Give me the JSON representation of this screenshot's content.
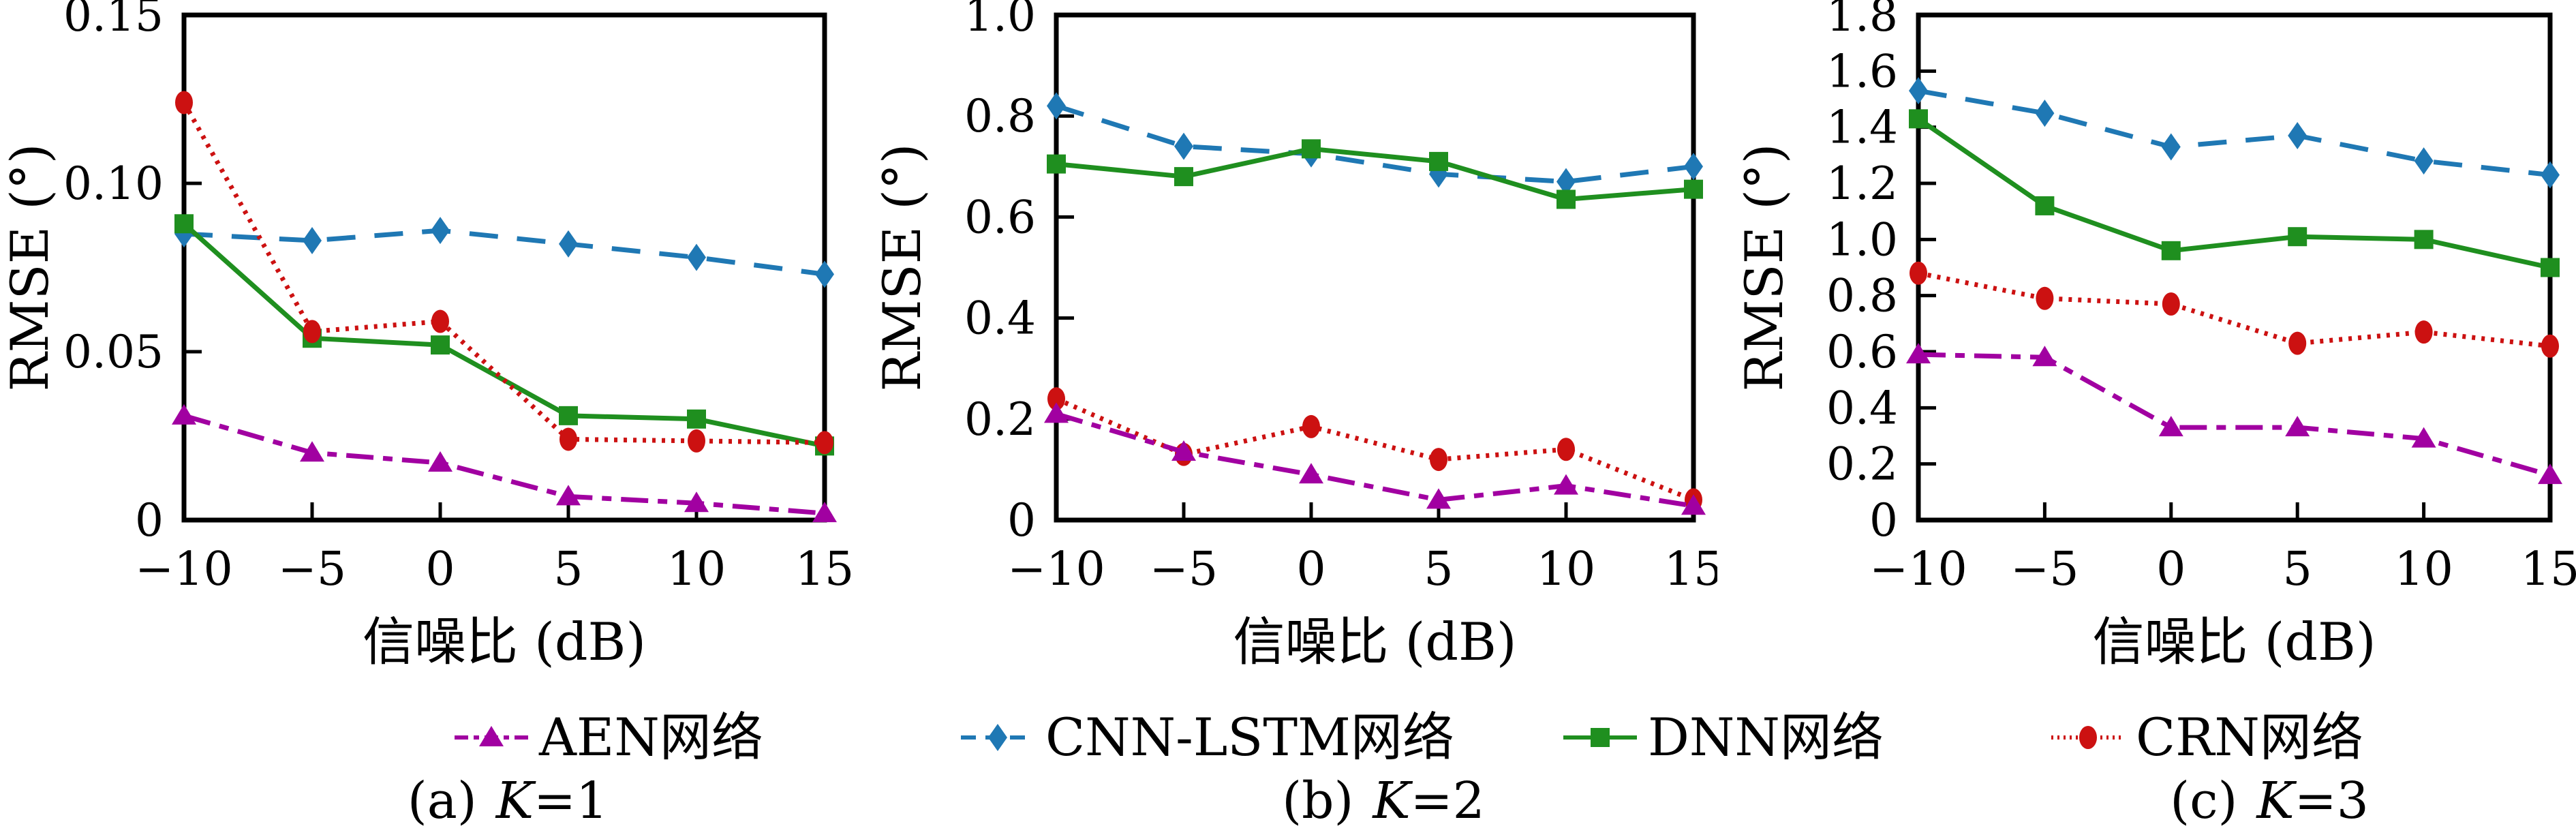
{
  "figure": {
    "background": "#ffffff",
    "axis_color": "#000000",
    "xlabel": "信噪比 (dB)",
    "ylabel": "RMSE (°)"
  },
  "series_styles": {
    "AEN": {
      "color": "#A100A1",
      "marker": "triangle",
      "line": "dashdot"
    },
    "CNN-LSTM": {
      "color": "#1F78B4",
      "marker": "diamond",
      "line": "dashed"
    },
    "DNN": {
      "color": "#1F8F1F",
      "marker": "square",
      "line": "solid"
    },
    "CRN": {
      "color": "#CC1111",
      "marker": "ellipse",
      "line": "dotted"
    }
  },
  "legend": {
    "items": [
      {
        "key": "AEN",
        "label": "AEN网络"
      },
      {
        "key": "CNN-LSTM",
        "label": "CNN-LSTM网络"
      },
      {
        "key": "DNN",
        "label": "DNN网络"
      },
      {
        "key": "CRN",
        "label": "CRN网络"
      }
    ]
  },
  "chart_data": [
    {
      "type": "line",
      "caption": {
        "index": "(a)",
        "k": "K",
        "eq": "=1"
      },
      "xlabel": "信噪比 (dB)",
      "ylabel": "RMSE (°)",
      "x": [
        -10,
        -5,
        0,
        5,
        10,
        15
      ],
      "xlim": [
        -10,
        15
      ],
      "ylim": [
        0,
        0.15
      ],
      "xticks": [
        -10,
        -5,
        0,
        5,
        10,
        15
      ],
      "xtick_labels": [
        "−10",
        "−5",
        "0",
        "5",
        "10",
        "15"
      ],
      "yticks": [
        0,
        0.05,
        0.1,
        0.15
      ],
      "ytick_labels": [
        "0",
        "0.05",
        "0.10",
        "0.15"
      ],
      "series": [
        {
          "key": "AEN",
          "name": "AEN网络",
          "values": [
            0.031,
            0.02,
            0.017,
            0.007,
            0.005,
            0.002
          ]
        },
        {
          "key": "CNN-LSTM",
          "name": "CNN-LSTM网络",
          "values": [
            0.085,
            0.083,
            0.086,
            0.082,
            0.078,
            0.073
          ]
        },
        {
          "key": "DNN",
          "name": "DNN网络",
          "values": [
            0.088,
            0.054,
            0.052,
            0.031,
            0.03,
            0.022
          ]
        },
        {
          "key": "CRN",
          "name": "CRN网络",
          "values": [
            0.124,
            0.056,
            0.059,
            0.024,
            0.0235,
            0.023
          ]
        }
      ]
    },
    {
      "type": "line",
      "caption": {
        "index": "(b)",
        "k": "K",
        "eq": "=2"
      },
      "xlabel": "信噪比 (dB)",
      "ylabel": "RMSE (°)",
      "x": [
        -10,
        -5,
        0,
        5,
        10,
        15
      ],
      "xlim": [
        -10,
        15
      ],
      "ylim": [
        0,
        1.0
      ],
      "xticks": [
        -10,
        -5,
        0,
        5,
        10,
        15
      ],
      "xtick_labels": [
        "−10",
        "−5",
        "0",
        "5",
        "10",
        "15"
      ],
      "yticks": [
        0,
        0.2,
        0.4,
        0.6,
        0.8,
        1.0
      ],
      "ytick_labels": [
        "0",
        "0.2",
        "0.4",
        "0.6",
        "0.8",
        "1.0"
      ],
      "series": [
        {
          "key": "AEN",
          "name": "AEN网络",
          "values": [
            0.21,
            0.135,
            0.09,
            0.04,
            0.068,
            0.028
          ]
        },
        {
          "key": "CNN-LSTM",
          "name": "CNN-LSTM网络",
          "values": [
            0.82,
            0.74,
            0.725,
            0.685,
            0.67,
            0.7
          ]
        },
        {
          "key": "DNN",
          "name": "DNN网络",
          "values": [
            0.705,
            0.68,
            0.735,
            0.71,
            0.635,
            0.655
          ]
        },
        {
          "key": "CRN",
          "name": "CRN网络",
          "values": [
            0.24,
            0.13,
            0.185,
            0.12,
            0.14,
            0.04
          ]
        }
      ]
    },
    {
      "type": "line",
      "caption": {
        "index": "(c)",
        "k": "K",
        "eq": "=3"
      },
      "xlabel": "信噪比 (dB)",
      "ylabel": "RMSE (°)",
      "x": [
        -10,
        -5,
        0,
        5,
        10,
        15
      ],
      "xlim": [
        -10,
        15
      ],
      "ylim": [
        0,
        1.8
      ],
      "xticks": [
        -10,
        -5,
        0,
        5,
        10,
        15
      ],
      "xtick_labels": [
        "−10",
        "−5",
        "0",
        "5",
        "10",
        "15"
      ],
      "yticks": [
        0,
        0.2,
        0.4,
        0.6,
        0.8,
        1.0,
        1.2,
        1.4,
        1.6,
        1.8
      ],
      "ytick_labels": [
        "0",
        "0.2",
        "0.4",
        "0.6",
        "0.8",
        "1.0",
        "1.2",
        "1.4",
        "1.6",
        "1.8"
      ],
      "series": [
        {
          "key": "AEN",
          "name": "AEN网络",
          "values": [
            0.59,
            0.58,
            0.33,
            0.33,
            0.29,
            0.16
          ]
        },
        {
          "key": "CNN-LSTM",
          "name": "CNN-LSTM网络",
          "values": [
            1.53,
            1.45,
            1.33,
            1.37,
            1.28,
            1.23
          ]
        },
        {
          "key": "DNN",
          "name": "DNN网络",
          "values": [
            1.43,
            1.12,
            0.96,
            1.01,
            1.0,
            0.9
          ]
        },
        {
          "key": "CRN",
          "name": "CRN网络",
          "values": [
            0.88,
            0.79,
            0.77,
            0.63,
            0.67,
            0.62
          ]
        }
      ]
    }
  ]
}
